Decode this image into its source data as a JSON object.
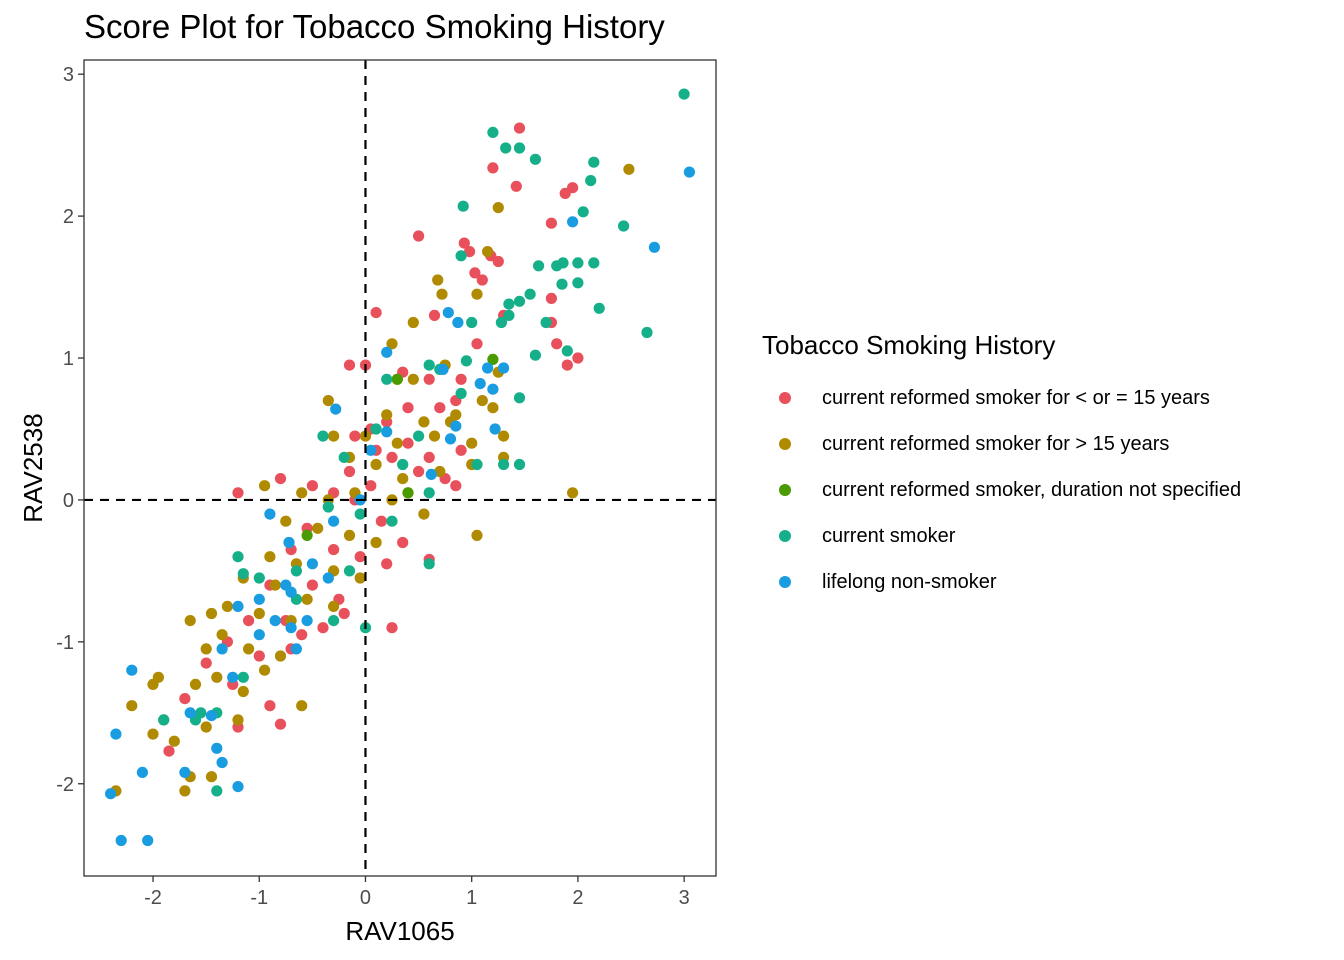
{
  "chart_data": {
    "type": "scatter",
    "title": "Score Plot for Tobacco Smoking History",
    "xlabel": "RAV1065",
    "ylabel": "RAV2538",
    "xlim": [
      -2.65,
      3.3
    ],
    "ylim": [
      -2.65,
      3.1
    ],
    "xticks": [
      -2,
      -1,
      0,
      1,
      2,
      3
    ],
    "yticks": [
      -2,
      -1,
      0,
      1,
      2,
      3
    ],
    "reference_lines": {
      "x": 0,
      "y": 0,
      "style": "dashed"
    },
    "grid": false,
    "legend": {
      "title": "Tobacco Smoking History",
      "position": "right"
    },
    "series": [
      {
        "name": "current reformed smoker for < or = 15 years",
        "color": "#E8505B",
        "points": [
          [
            1.45,
            2.62
          ],
          [
            1.2,
            2.34
          ],
          [
            1.42,
            2.21
          ],
          [
            0.5,
            1.86
          ],
          [
            0.93,
            1.81
          ],
          [
            1.88,
            2.16
          ],
          [
            1.95,
            2.2
          ],
          [
            1.75,
            1.95
          ],
          [
            1.18,
            1.72
          ],
          [
            1.25,
            1.68
          ],
          [
            0.98,
            1.75
          ],
          [
            1.03,
            1.6
          ],
          [
            1.1,
            1.55
          ],
          [
            1.75,
            1.42
          ],
          [
            0.65,
            1.3
          ],
          [
            0.1,
            1.32
          ],
          [
            1.3,
            1.3
          ],
          [
            1.75,
            1.25
          ],
          [
            1.8,
            1.1
          ],
          [
            1.9,
            0.95
          ],
          [
            2.0,
            1.0
          ],
          [
            -0.15,
            0.95
          ],
          [
            0.0,
            0.95
          ],
          [
            0.35,
            0.9
          ],
          [
            0.6,
            0.85
          ],
          [
            0.9,
            0.85
          ],
          [
            1.05,
            1.1
          ],
          [
            0.7,
            0.65
          ],
          [
            0.4,
            0.65
          ],
          [
            0.85,
            0.7
          ],
          [
            0.2,
            0.55
          ],
          [
            0.4,
            0.4
          ],
          [
            0.6,
            0.3
          ],
          [
            0.9,
            0.35
          ],
          [
            -0.1,
            0.45
          ],
          [
            0.05,
            0.5
          ],
          [
            0.1,
            0.35
          ],
          [
            0.25,
            0.3
          ],
          [
            0.5,
            0.2
          ],
          [
            0.75,
            0.15
          ],
          [
            -0.15,
            0.2
          ],
          [
            0.05,
            0.1
          ],
          [
            0.4,
            0.05
          ],
          [
            0.85,
            0.1
          ],
          [
            -1.2,
            0.05
          ],
          [
            -0.8,
            0.15
          ],
          [
            -0.5,
            0.1
          ],
          [
            -0.3,
            0.05
          ],
          [
            -0.1,
            0.0
          ],
          [
            0.15,
            -0.15
          ],
          [
            0.35,
            -0.3
          ],
          [
            -0.55,
            -0.2
          ],
          [
            -0.3,
            -0.35
          ],
          [
            -0.05,
            -0.4
          ],
          [
            0.2,
            -0.45
          ],
          [
            0.6,
            -0.42
          ],
          [
            -0.7,
            -0.35
          ],
          [
            -0.5,
            -0.6
          ],
          [
            -0.25,
            -0.7
          ],
          [
            -0.9,
            -0.6
          ],
          [
            -1.1,
            -0.85
          ],
          [
            -0.75,
            -0.85
          ],
          [
            -0.4,
            -0.9
          ],
          [
            0.25,
            -0.9
          ],
          [
            -1.3,
            -1.0
          ],
          [
            -1.0,
            -1.1
          ],
          [
            -0.7,
            -1.05
          ],
          [
            -1.5,
            -1.15
          ],
          [
            -1.25,
            -1.3
          ],
          [
            -0.9,
            -1.45
          ],
          [
            -1.7,
            -1.4
          ],
          [
            -1.2,
            -1.6
          ],
          [
            -0.8,
            -1.58
          ],
          [
            -1.85,
            -1.77
          ],
          [
            -0.6,
            -0.95
          ],
          [
            -0.2,
            -0.8
          ]
        ]
      },
      {
        "name": "current reformed smoker for > 15 years",
        "color": "#B08A00",
        "points": [
          [
            2.48,
            2.33
          ],
          [
            1.25,
            2.06
          ],
          [
            1.15,
            1.75
          ],
          [
            0.68,
            1.55
          ],
          [
            0.72,
            1.45
          ],
          [
            1.05,
            1.45
          ],
          [
            0.45,
            1.25
          ],
          [
            0.25,
            1.1
          ],
          [
            0.75,
            0.95
          ],
          [
            1.25,
            0.9
          ],
          [
            0.3,
            0.85
          ],
          [
            -0.35,
            0.7
          ],
          [
            -0.3,
            0.45
          ],
          [
            0.55,
            0.55
          ],
          [
            0.85,
            0.6
          ],
          [
            1.2,
            0.65
          ],
          [
            0.0,
            0.45
          ],
          [
            0.3,
            0.4
          ],
          [
            0.65,
            0.45
          ],
          [
            1.0,
            0.4
          ],
          [
            1.3,
            0.45
          ],
          [
            0.1,
            0.25
          ],
          [
            0.35,
            0.15
          ],
          [
            0.7,
            0.2
          ],
          [
            1.0,
            0.25
          ],
          [
            1.95,
            0.05
          ],
          [
            -0.95,
            0.1
          ],
          [
            -0.6,
            0.05
          ],
          [
            -0.35,
            0.0
          ],
          [
            -0.1,
            0.05
          ],
          [
            0.25,
            0.0
          ],
          [
            0.55,
            -0.1
          ],
          [
            -0.75,
            -0.15
          ],
          [
            -0.45,
            -0.2
          ],
          [
            -0.15,
            -0.25
          ],
          [
            0.1,
            -0.3
          ],
          [
            -0.9,
            -0.4
          ],
          [
            -0.65,
            -0.45
          ],
          [
            -0.3,
            -0.5
          ],
          [
            -0.05,
            -0.55
          ],
          [
            -1.15,
            -0.55
          ],
          [
            -0.85,
            -0.6
          ],
          [
            -0.55,
            -0.7
          ],
          [
            -0.3,
            -0.75
          ],
          [
            -1.3,
            -0.75
          ],
          [
            -1.0,
            -0.8
          ],
          [
            -0.7,
            -0.85
          ],
          [
            -1.45,
            -0.8
          ],
          [
            -1.65,
            -0.85
          ],
          [
            -1.5,
            -1.05
          ],
          [
            -1.35,
            -0.95
          ],
          [
            -1.1,
            -1.05
          ],
          [
            -0.8,
            -1.1
          ],
          [
            -1.4,
            -1.25
          ],
          [
            -1.15,
            -1.35
          ],
          [
            -0.95,
            -1.2
          ],
          [
            -1.6,
            -1.3
          ],
          [
            -1.95,
            -1.25
          ],
          [
            -2.0,
            -1.3
          ],
          [
            -1.9,
            -1.55
          ],
          [
            -2.2,
            -1.45
          ],
          [
            -1.8,
            -1.7
          ],
          [
            -2.0,
            -1.65
          ],
          [
            -1.5,
            -1.6
          ],
          [
            -1.2,
            -1.55
          ],
          [
            -0.6,
            -1.45
          ],
          [
            -1.65,
            -1.95
          ],
          [
            -1.7,
            -2.05
          ],
          [
            -2.35,
            -2.05
          ],
          [
            -1.45,
            -1.95
          ],
          [
            0.2,
            0.6
          ],
          [
            0.45,
            0.85
          ],
          [
            -0.15,
            0.3
          ],
          [
            0.8,
            0.55
          ],
          [
            1.1,
            0.7
          ],
          [
            1.05,
            -0.25
          ],
          [
            1.3,
            0.3
          ]
        ]
      },
      {
        "name": "current reformed smoker, duration not specified",
        "color": "#4A9B00",
        "points": [
          [
            1.2,
            0.99
          ],
          [
            0.3,
            0.85
          ],
          [
            0.4,
            0.05
          ],
          [
            -0.55,
            -0.25
          ]
        ]
      },
      {
        "name": "current smoker",
        "color": "#15B08A",
        "points": [
          [
            3.0,
            2.86
          ],
          [
            1.2,
            2.59
          ],
          [
            1.32,
            2.48
          ],
          [
            1.45,
            2.48
          ],
          [
            1.6,
            2.4
          ],
          [
            2.15,
            2.38
          ],
          [
            2.12,
            2.25
          ],
          [
            2.05,
            2.03
          ],
          [
            2.43,
            1.93
          ],
          [
            0.92,
            2.07
          ],
          [
            1.63,
            1.65
          ],
          [
            1.8,
            1.65
          ],
          [
            1.86,
            1.67
          ],
          [
            2.0,
            1.67
          ],
          [
            2.15,
            1.67
          ],
          [
            0.9,
            1.72
          ],
          [
            1.85,
            1.52
          ],
          [
            2.0,
            1.53
          ],
          [
            1.55,
            1.45
          ],
          [
            1.45,
            1.4
          ],
          [
            1.35,
            1.3
          ],
          [
            1.35,
            1.38
          ],
          [
            2.2,
            1.35
          ],
          [
            1.7,
            1.25
          ],
          [
            2.65,
            1.18
          ],
          [
            1.6,
            1.02
          ],
          [
            1.9,
            1.05
          ],
          [
            1.28,
            1.25
          ],
          [
            1.0,
            1.25
          ],
          [
            0.95,
            0.98
          ],
          [
            0.6,
            0.95
          ],
          [
            0.7,
            0.92
          ],
          [
            0.9,
            0.75
          ],
          [
            1.45,
            0.72
          ],
          [
            0.2,
            0.85
          ],
          [
            -0.4,
            0.45
          ],
          [
            -0.2,
            0.3
          ],
          [
            0.1,
            0.5
          ],
          [
            0.5,
            0.45
          ],
          [
            1.05,
            0.25
          ],
          [
            1.3,
            0.25
          ],
          [
            1.45,
            0.25
          ],
          [
            0.35,
            0.25
          ],
          [
            0.6,
            0.05
          ],
          [
            -0.35,
            -0.05
          ],
          [
            -0.05,
            -0.1
          ],
          [
            0.25,
            -0.15
          ],
          [
            0.6,
            -0.45
          ],
          [
            -1.2,
            -0.4
          ],
          [
            -0.65,
            -0.5
          ],
          [
            -0.15,
            -0.5
          ],
          [
            -1.15,
            -0.52
          ],
          [
            -1.0,
            -0.55
          ],
          [
            -0.65,
            -0.7
          ],
          [
            -0.3,
            -0.85
          ],
          [
            0.0,
            -0.9
          ],
          [
            -1.9,
            -1.55
          ],
          [
            -1.6,
            -1.55
          ],
          [
            -1.55,
            -1.5
          ],
          [
            -1.4,
            -1.5
          ],
          [
            -1.15,
            -1.25
          ],
          [
            -1.4,
            -2.05
          ]
        ]
      },
      {
        "name": "lifelong non-smoker",
        "color": "#1A9CE0",
        "points": [
          [
            3.05,
            2.31
          ],
          [
            2.72,
            1.78
          ],
          [
            1.95,
            1.96
          ],
          [
            0.78,
            1.32
          ],
          [
            0.87,
            1.25
          ],
          [
            0.2,
            1.04
          ],
          [
            1.15,
            0.93
          ],
          [
            1.3,
            0.93
          ],
          [
            1.08,
            0.82
          ],
          [
            0.73,
            0.92
          ],
          [
            1.2,
            0.78
          ],
          [
            -0.28,
            0.64
          ],
          [
            1.22,
            0.5
          ],
          [
            0.85,
            0.52
          ],
          [
            0.8,
            0.43
          ],
          [
            0.2,
            0.48
          ],
          [
            0.05,
            0.35
          ],
          [
            0.62,
            0.18
          ],
          [
            -0.05,
            0.0
          ],
          [
            -0.9,
            -0.1
          ],
          [
            -0.3,
            -0.15
          ],
          [
            -0.72,
            -0.3
          ],
          [
            -0.5,
            -0.45
          ],
          [
            -0.35,
            -0.55
          ],
          [
            -0.75,
            -0.6
          ],
          [
            -0.7,
            -0.65
          ],
          [
            -1.0,
            -0.7
          ],
          [
            -1.2,
            -0.75
          ],
          [
            -0.85,
            -0.85
          ],
          [
            -0.55,
            -0.85
          ],
          [
            -0.7,
            -0.9
          ],
          [
            -1.0,
            -0.95
          ],
          [
            -0.65,
            -1.05
          ],
          [
            -1.35,
            -1.05
          ],
          [
            -1.25,
            -1.25
          ],
          [
            -2.2,
            -1.2
          ],
          [
            -2.35,
            -1.65
          ],
          [
            -1.65,
            -1.5
          ],
          [
            -1.45,
            -1.52
          ],
          [
            -1.4,
            -1.75
          ],
          [
            -1.35,
            -1.85
          ],
          [
            -2.1,
            -1.92
          ],
          [
            -1.7,
            -1.92
          ],
          [
            -2.4,
            -2.07
          ],
          [
            -1.2,
            -2.02
          ],
          [
            -2.3,
            -2.4
          ],
          [
            -2.05,
            -2.4
          ]
        ]
      }
    ]
  }
}
